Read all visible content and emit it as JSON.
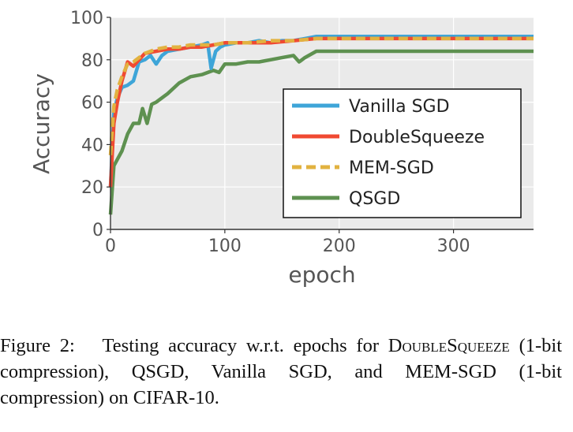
{
  "chart_data": {
    "type": "line",
    "title": "",
    "xlabel": "epoch",
    "ylabel": "Accuracy",
    "xlim": [
      0,
      370
    ],
    "ylim": [
      0,
      100
    ],
    "xticks": [
      "0",
      "100",
      "200",
      "300"
    ],
    "yticks": [
      "0",
      "20",
      "40",
      "60",
      "80",
      "100"
    ],
    "grid": true,
    "legend_position": "center-right",
    "series": [
      {
        "name": "Vanilla SGD",
        "color": "#3ea5d8",
        "style": "solid",
        "x": [
          0,
          3,
          6,
          10,
          15,
          20,
          25,
          30,
          35,
          40,
          45,
          50,
          60,
          70,
          80,
          85,
          88,
          92,
          96,
          100,
          110,
          120,
          130,
          140,
          150,
          160,
          170,
          180,
          200,
          250,
          300,
          370
        ],
        "y": [
          20,
          55,
          62,
          67,
          68,
          70,
          79,
          80,
          82,
          78,
          82,
          84,
          85,
          86,
          87,
          88,
          76,
          84,
          86,
          87,
          88,
          88,
          89,
          88,
          89,
          89,
          90,
          91,
          91,
          91,
          91,
          91
        ]
      },
      {
        "name": "DoubleSqueeze",
        "color": "#f04a32",
        "style": "solid",
        "x": [
          0,
          3,
          6,
          10,
          15,
          20,
          25,
          30,
          40,
          50,
          60,
          70,
          80,
          90,
          100,
          120,
          140,
          160,
          180,
          200,
          250,
          300,
          370
        ],
        "y": [
          20,
          50,
          60,
          70,
          79,
          77,
          80,
          83,
          84,
          85,
          85,
          86,
          86,
          87,
          88,
          88,
          88,
          89,
          90,
          90,
          90,
          90,
          90
        ]
      },
      {
        "name": "MEM-SGD",
        "color": "#e2b240",
        "style": "dashed",
        "x": [
          0,
          3,
          6,
          10,
          15,
          20,
          25,
          30,
          40,
          50,
          60,
          70,
          80,
          90,
          100,
          120,
          140,
          160,
          180,
          200,
          250,
          300,
          370
        ],
        "y": [
          35,
          58,
          66,
          72,
          78,
          79,
          81,
          83,
          85,
          86,
          86,
          87,
          87,
          87,
          88,
          88,
          89,
          89,
          90,
          90,
          90,
          90,
          90
        ]
      },
      {
        "name": "QSGD",
        "color": "#5e9150",
        "style": "solid",
        "x": [
          0,
          3,
          6,
          10,
          15,
          20,
          25,
          28,
          32,
          36,
          40,
          50,
          60,
          70,
          80,
          90,
          95,
          100,
          110,
          120,
          130,
          140,
          150,
          160,
          165,
          170,
          180,
          200,
          250,
          300,
          370
        ],
        "y": [
          7,
          30,
          33,
          37,
          45,
          50,
          50,
          57,
          50,
          59,
          60,
          64,
          69,
          72,
          73,
          75,
          74,
          78,
          78,
          79,
          79,
          80,
          81,
          82,
          79,
          81,
          84,
          84,
          84,
          84,
          84
        ]
      }
    ]
  },
  "caption": {
    "label": "Figure 2:",
    "text_1": "Testing accuracy w.r.t. epochs for ",
    "method_1": "DoubleSqueeze",
    "text_2": " (1-bit compression), QSGD, Vanilla SGD, and MEM-SGD (1-bit compression) on CIFAR-10."
  }
}
